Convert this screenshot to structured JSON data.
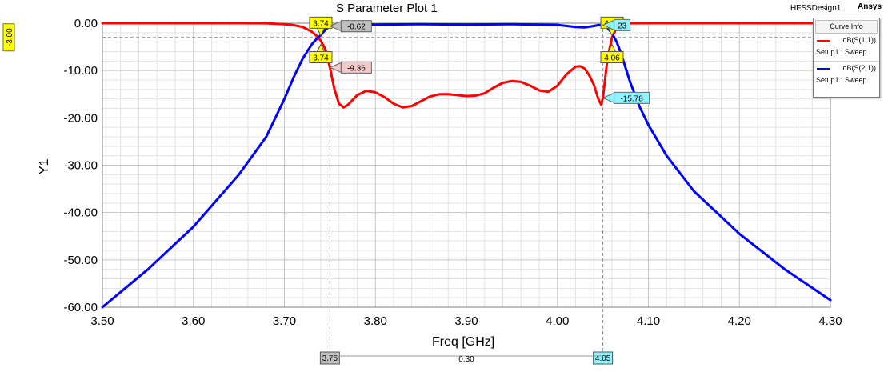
{
  "header": {
    "brand": "Ansys",
    "design": "HFSSDesign1"
  },
  "chart_data": {
    "type": "line",
    "title": "S Parameter Plot 1",
    "xlabel": "Freq [GHz]",
    "ylabel": "Y1",
    "xlim": [
      3.5,
      4.3
    ],
    "ylim": [
      -60,
      0
    ],
    "x_ticks": [
      "3.50",
      "3.60",
      "3.70",
      "3.80",
      "3.90",
      "4.00",
      "4.10",
      "4.20",
      "4.30"
    ],
    "y_ticks": [
      "0.00",
      "-10.00",
      "-20.00",
      "-30.00",
      "-40.00",
      "-50.00",
      "-60.00"
    ],
    "grid": true,
    "legend": "top-right",
    "legend_title": "Curve Info",
    "series": [
      {
        "name": "dB(S(1,1))",
        "setup": "Setup1 : Sweep",
        "color": "#ff0000",
        "x": [
          3.5,
          3.6,
          3.65,
          3.68,
          3.7,
          3.71,
          3.72,
          3.73,
          3.735,
          3.74,
          3.745,
          3.75,
          3.755,
          3.76,
          3.765,
          3.77,
          3.78,
          3.79,
          3.8,
          3.81,
          3.82,
          3.83,
          3.84,
          3.85,
          3.86,
          3.87,
          3.88,
          3.89,
          3.9,
          3.91,
          3.92,
          3.93,
          3.94,
          3.95,
          3.96,
          3.97,
          3.98,
          3.99,
          4.0,
          4.01,
          4.02,
          4.025,
          4.03,
          4.035,
          4.04,
          4.045,
          4.048,
          4.05,
          4.052,
          4.055,
          4.06,
          4.065,
          4.07,
          4.075,
          4.08,
          4.1,
          4.2,
          4.3
        ],
        "y": [
          0,
          0,
          0,
          -0.02,
          -0.2,
          -0.4,
          -0.8,
          -1.8,
          -2.6,
          -3.7,
          -5.5,
          -9.36,
          -14,
          -17,
          -17.8,
          -17.2,
          -15.2,
          -14.3,
          -14.6,
          -15.6,
          -17.0,
          -17.8,
          -17.5,
          -16.5,
          -15.5,
          -15.0,
          -15.0,
          -15.2,
          -15.4,
          -15.3,
          -14.8,
          -13.6,
          -12.6,
          -12.2,
          -12.4,
          -13.2,
          -14.2,
          -14.5,
          -13.2,
          -10.8,
          -9.2,
          -9.1,
          -9.6,
          -11.0,
          -13.0,
          -16.0,
          -17.2,
          -15.78,
          -12.5,
          -7.5,
          -3.0,
          -1.0,
          -0.3,
          -0.08,
          -0.02,
          0,
          0,
          0
        ]
      },
      {
        "name": "dB(S(2,1))",
        "setup": "Setup1 : Sweep",
        "color": "#0000ff",
        "x": [
          3.5,
          3.55,
          3.6,
          3.65,
          3.68,
          3.7,
          3.71,
          3.72,
          3.73,
          3.735,
          3.74,
          3.745,
          3.75,
          3.76,
          3.78,
          3.8,
          3.85,
          3.9,
          3.95,
          4.0,
          4.02,
          4.03,
          4.04,
          4.045,
          4.05,
          4.055,
          4.06,
          4.065,
          4.07,
          4.075,
          4.08,
          4.09,
          4.1,
          4.12,
          4.15,
          4.2,
          4.25,
          4.3
        ],
        "y": [
          -60,
          -52,
          -43,
          -32,
          -24,
          -16,
          -11.5,
          -7.5,
          -4.5,
          -3.4,
          -2.5,
          -1.4,
          -0.62,
          -0.2,
          -0.2,
          -0.3,
          -0.2,
          -0.3,
          -0.2,
          -0.35,
          -0.8,
          -0.9,
          -0.6,
          -0.4,
          -0.4,
          -1.0,
          -2.1,
          -3.9,
          -6.4,
          -9.5,
          -12.5,
          -17.5,
          -21.5,
          -28,
          -35.5,
          -44.5,
          -52,
          -58.5
        ]
      }
    ],
    "reference_line": {
      "y": -3.0,
      "label": "-3.00"
    },
    "markers": [
      {
        "label": "3.74",
        "x": 3.74,
        "y": -0.4,
        "side": "top",
        "fill": "#ffff00"
      },
      {
        "label": "3.74",
        "x": 3.74,
        "y": -6.0,
        "side": "bottom",
        "fill": "#ffff00"
      },
      {
        "label": "4.06",
        "x": 4.06,
        "y": -0.4,
        "side": "top",
        "fill": "#ffff00"
      },
      {
        "label": "4.06",
        "x": 4.06,
        "y": -6.0,
        "side": "bottom",
        "fill": "#ffff00"
      }
    ],
    "value_labels": [
      {
        "text": "-0.62",
        "x": 3.75,
        "y": -0.62,
        "fill": "#c0c0c0"
      },
      {
        "text": "-9.36",
        "x": 3.75,
        "y": -9.36,
        "fill": "#f4c8c8"
      },
      {
        "text": "23",
        "x": 4.05,
        "y": -0.4,
        "fill": "#8ff4ff"
      },
      {
        "text": "-15.78",
        "x": 4.05,
        "y": -15.78,
        "fill": "#8ff4ff"
      }
    ],
    "vertical_markers": [
      {
        "x": 3.75,
        "label": "3.75",
        "fill": "#c0c0c0"
      },
      {
        "x": 4.05,
        "label": "4.05",
        "fill": "#8ff4ff"
      }
    ],
    "delta": {
      "label": "0.30"
    }
  }
}
